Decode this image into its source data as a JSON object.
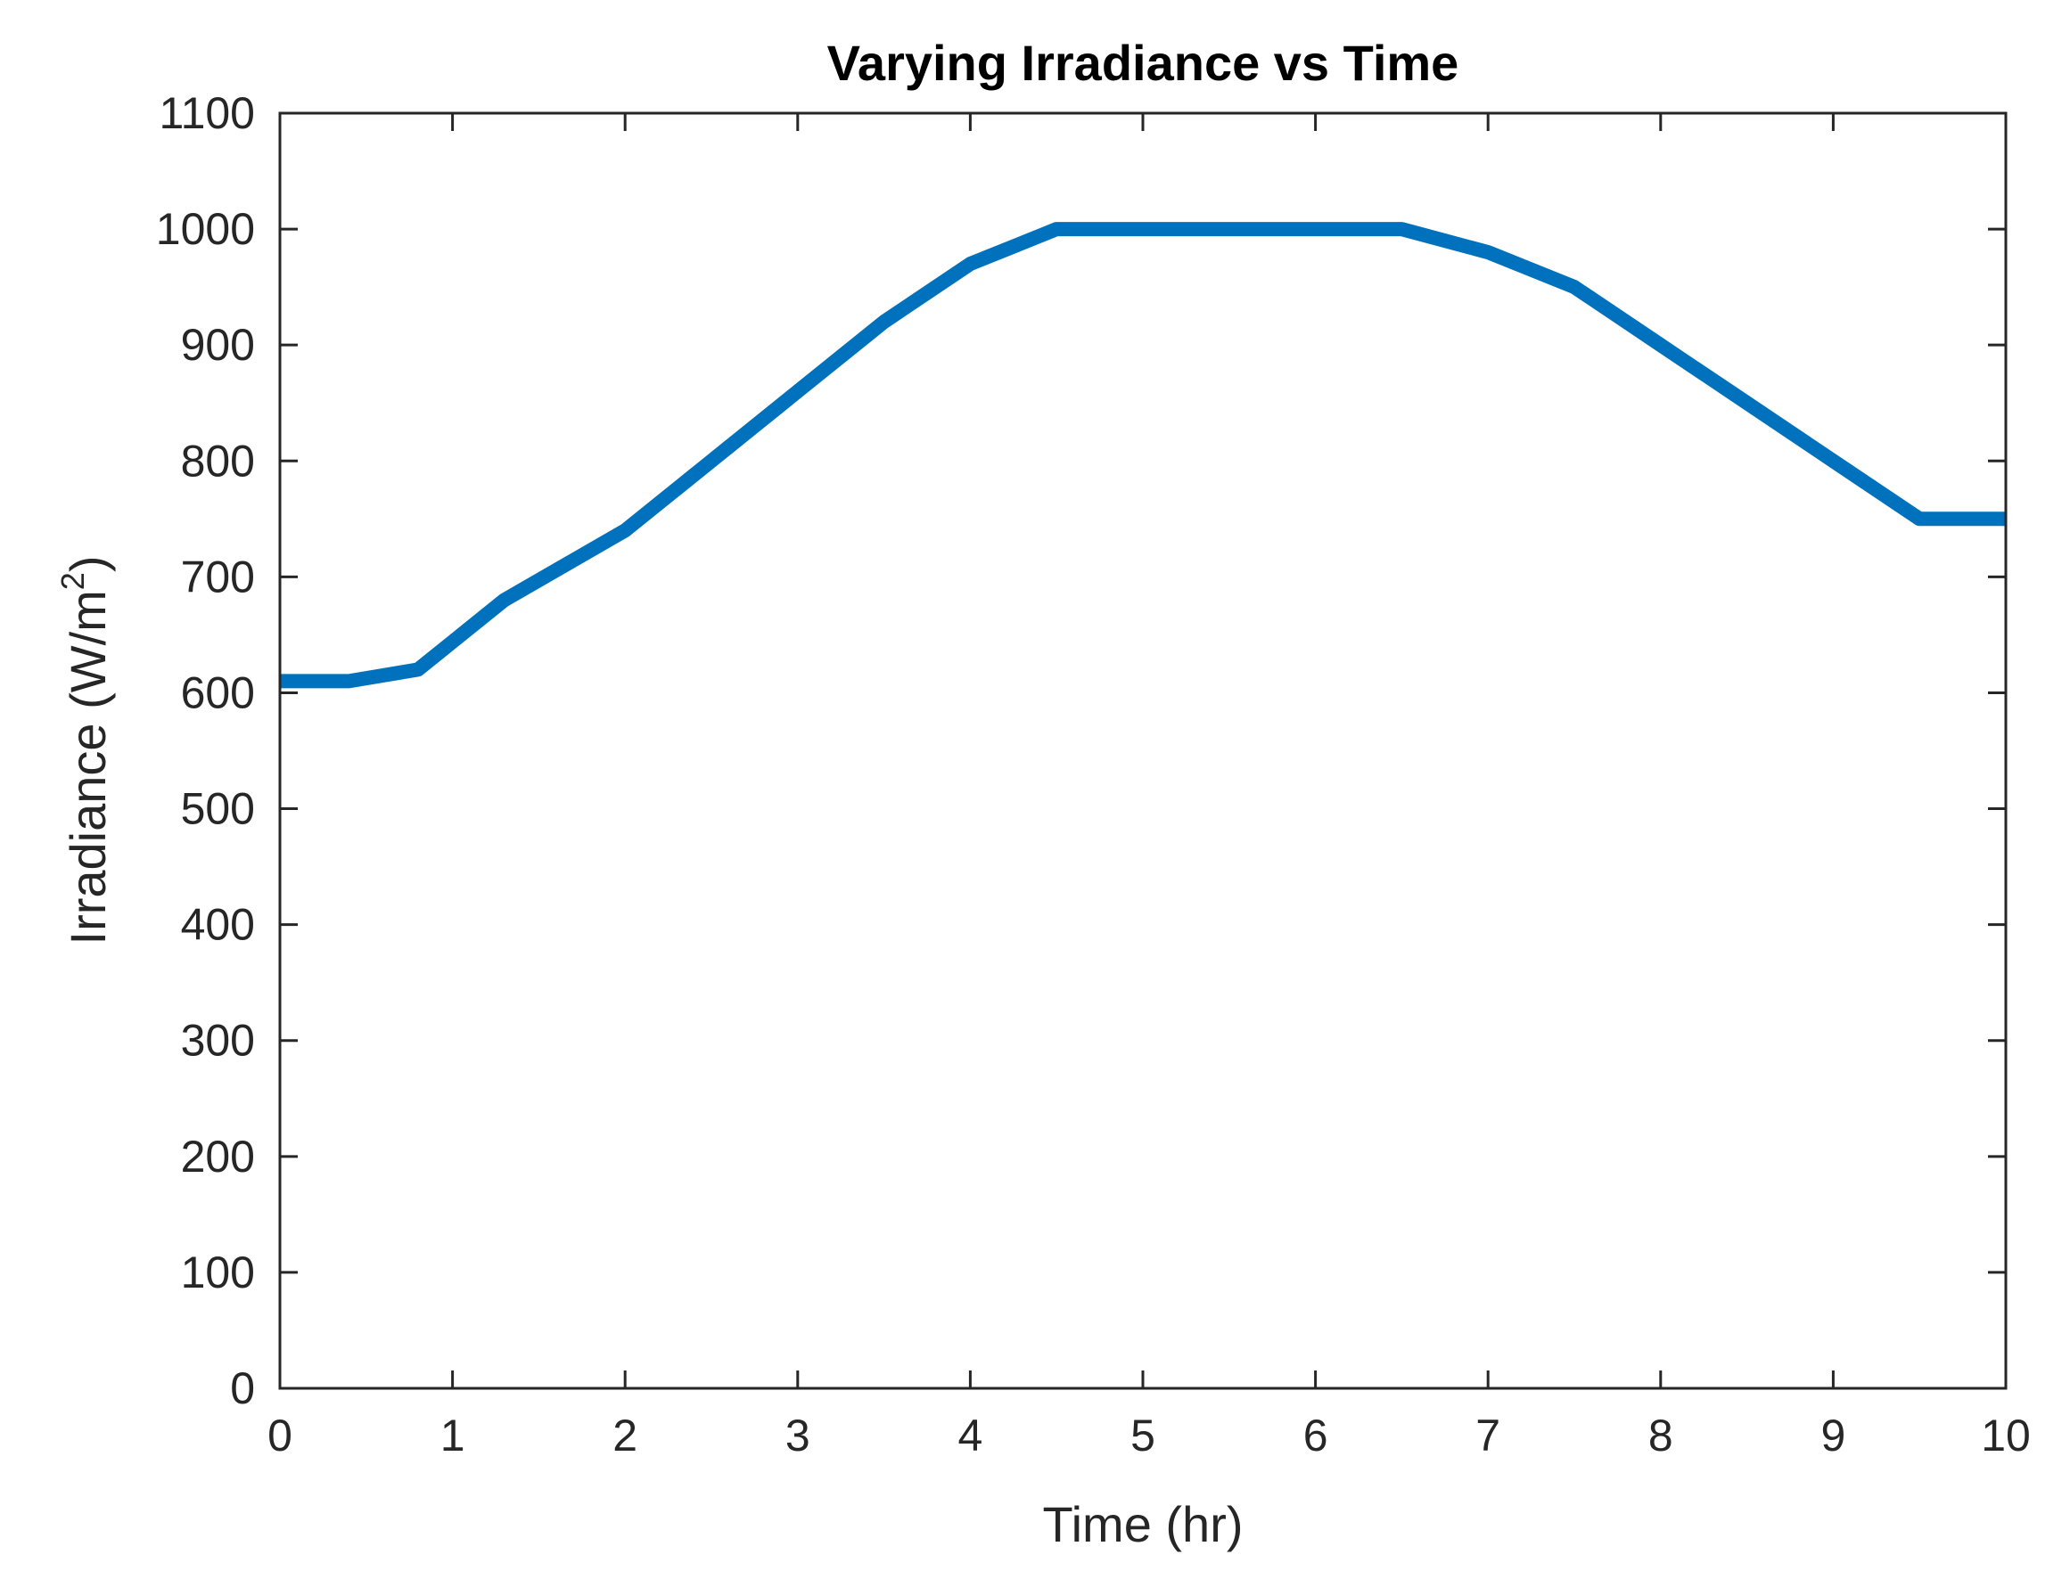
{
  "chart_data": {
    "type": "line",
    "title": "Varying Irradiance vs Time",
    "xlabel": "Time (hr)",
    "ylabel_main": "Irradiance (W/m",
    "ylabel_sup": "2",
    "ylabel_close": ")",
    "xlim": [
      0,
      10
    ],
    "ylim": [
      0,
      1100
    ],
    "xticks": [
      "0",
      "1",
      "2",
      "3",
      "4",
      "5",
      "6",
      "7",
      "8",
      "9",
      "10"
    ],
    "yticks": [
      "0",
      "100",
      "200",
      "300",
      "400",
      "500",
      "600",
      "700",
      "800",
      "900",
      "1000",
      "1100"
    ],
    "series": [
      {
        "name": "Irradiance",
        "color": "#0072BD",
        "x": [
          0,
          0.4,
          0.8,
          1.3,
          2.0,
          2.5,
          3.0,
          3.5,
          4.0,
          4.5,
          5.0,
          5.5,
          6.0,
          6.5,
          7.0,
          7.5,
          8.0,
          8.5,
          9.0,
          9.5,
          10.0
        ],
        "y": [
          610,
          610,
          620,
          680,
          740,
          800,
          860,
          920,
          970,
          1000,
          1000,
          1000,
          1000,
          1000,
          980,
          950,
          900,
          850,
          800,
          750,
          750
        ]
      }
    ]
  }
}
